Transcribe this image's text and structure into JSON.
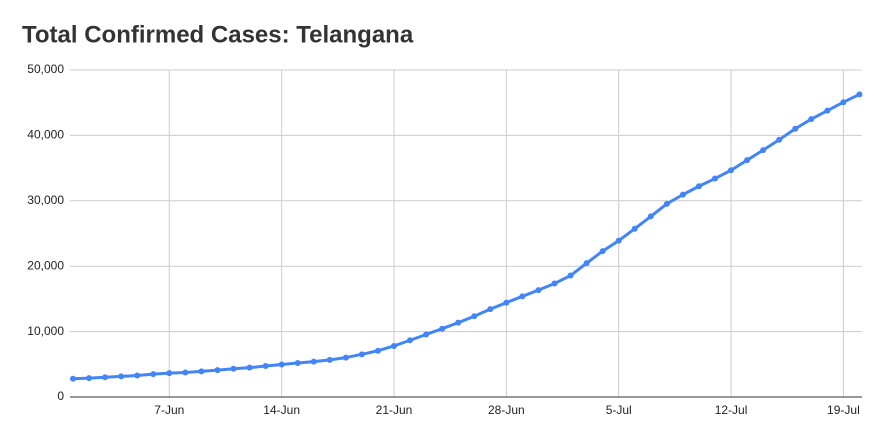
{
  "chart_data": {
    "type": "line",
    "title": "Total Confirmed Cases: Telangana",
    "categories": [
      null,
      null,
      null,
      null,
      null,
      null,
      "7-Jun",
      null,
      null,
      null,
      null,
      null,
      null,
      "14-Jun",
      null,
      null,
      null,
      null,
      null,
      null,
      "21-Jun",
      null,
      null,
      null,
      null,
      null,
      null,
      "28-Jun",
      null,
      null,
      null,
      null,
      null,
      null,
      "5-Jul",
      null,
      null,
      null,
      null,
      null,
      null,
      "12-Jul",
      null,
      null,
      null,
      null,
      null,
      null,
      "19-Jul",
      null
    ],
    "series": [
      {
        "name": "Total Confirmed Cases",
        "color": "#4285f4",
        "values": [
          2792,
          2891,
          3020,
          3147,
          3290,
          3496,
          3650,
          3742,
          3920,
          4111,
          4320,
          4484,
          4737,
          4974,
          5193,
          5406,
          5675,
          6027,
          6526,
          7072,
          7802,
          8674,
          9553,
          10444,
          11364,
          12349,
          13436,
          14419,
          15394,
          16339,
          17357,
          18570,
          20462,
          22312,
          23902,
          25733,
          27612,
          29536,
          30946,
          32224,
          33402,
          34671,
          36221,
          37745,
          39342,
          41018,
          42496,
          43780,
          45076,
          46274
        ]
      }
    ],
    "ylim": [
      0,
      50000
    ],
    "yticks": [
      0,
      {
        "value": 10000,
        "label": "10,000"
      },
      {
        "value": 20000,
        "label": "20,000"
      },
      {
        "value": 30000,
        "label": "30,000"
      },
      {
        "value": 40000,
        "label": "40,000"
      },
      {
        "value": 50000,
        "label": "50,000"
      }
    ],
    "grid": true
  }
}
